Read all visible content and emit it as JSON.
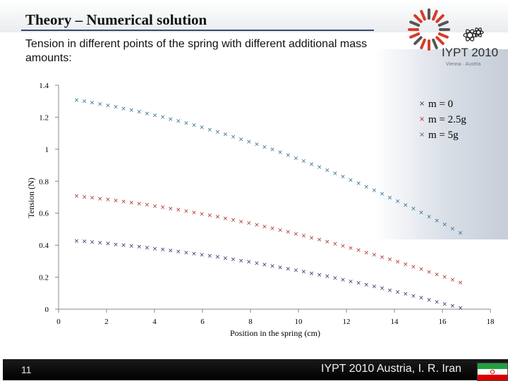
{
  "slide": {
    "title": "Theory – Numerical solution",
    "subtitle": "Tension in different points of the spring with different additional mass amounts:",
    "number": "11",
    "footer": "IYPT 2010 Austria, I. R. Iran",
    "logo_text": "IYPT 2010",
    "logo_subtext": "Vienna · Austria"
  },
  "colors": {
    "m0": "#2e3470",
    "m25": "#b22c2c",
    "m5": "#2f7191",
    "title_rule": "#3a4a6b"
  },
  "chart_data": {
    "type": "scatter",
    "title": "",
    "xlabel": "Position in the spring (cm)",
    "ylabel": "Tension (N)",
    "xlim": [
      0,
      18
    ],
    "ylim": [
      0,
      1.4
    ],
    "xticks": [
      0,
      2,
      4,
      6,
      8,
      10,
      12,
      14,
      16,
      18
    ],
    "yticks": [
      "0",
      "0.2",
      "0.4",
      "0.6",
      "0.8",
      "1",
      "1.2",
      "1.4"
    ],
    "legend_position": "top-right",
    "series": [
      {
        "name": "m = 0",
        "key": "m0",
        "x_start": 0.75,
        "x_end": 16.75,
        "points": 50,
        "y_at_start": 0.43,
        "y_at_end": 0.01
      },
      {
        "name": "m = 2.5g",
        "key": "m25",
        "x_start": 0.75,
        "x_end": 16.75,
        "points": 50,
        "y_at_start": 0.71,
        "y_at_end": 0.17
      },
      {
        "name": "m = 5g",
        "key": "m5",
        "x_start": 0.75,
        "x_end": 16.75,
        "points": 50,
        "y_at_start": 1.31,
        "y_at_end": 0.48
      }
    ]
  }
}
